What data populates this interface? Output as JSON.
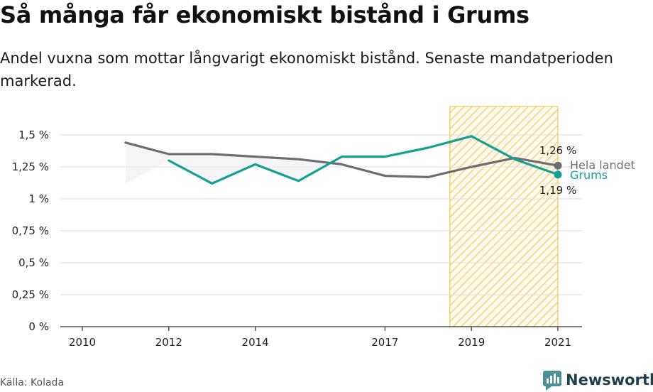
{
  "title": "Så många får ekonomiskt bistånd i Grums",
  "subtitle": "Andel vuxna som mottar långvarigt ekonomiskt bistånd. Senaste mandatperioden markerad.",
  "source": "Källa: Kolada",
  "brand": "Newsworthy",
  "colors": {
    "grums": "#15a093",
    "hela_landet": "#6e6d72",
    "highlight": "#f3c950",
    "grid": "#dddddd",
    "brand": "#1f3f4c"
  },
  "chart_data": {
    "type": "line",
    "title": "Så många får ekonomiskt bistånd i Grums",
    "xlabel": "",
    "ylabel": "",
    "ylim": [
      0,
      1.5
    ],
    "xlim": [
      2010,
      2021
    ],
    "x_ticks": [
      "2010",
      "2012",
      "2014",
      "2017",
      "2019",
      "2021"
    ],
    "y_ticks": [
      {
        "value": 0,
        "label": "0 %"
      },
      {
        "value": 0.25,
        "label": "0,25 %"
      },
      {
        "value": 0.5,
        "label": "0,5 %"
      },
      {
        "value": 0.75,
        "label": "0,75 %"
      },
      {
        "value": 1,
        "label": "1 %"
      },
      {
        "value": 1.25,
        "label": "1,25 %"
      },
      {
        "value": 1.5,
        "label": "1,5 %"
      }
    ],
    "highlight_period": {
      "from": 2018.5,
      "to": 2021
    },
    "series": [
      {
        "name": "Hela landet",
        "color": "#6e6d72",
        "x": [
          2011,
          2012,
          2013,
          2014,
          2015,
          2016,
          2017,
          2018,
          2019,
          2020,
          2021
        ],
        "values": [
          1.44,
          1.35,
          1.35,
          1.33,
          1.31,
          1.27,
          1.18,
          1.17,
          1.25,
          1.32,
          1.26
        ],
        "end_label": "1,26 %"
      },
      {
        "name": "Grums",
        "color": "#15a093",
        "x": [
          2012,
          2013,
          2014,
          2015,
          2016,
          2017,
          2018,
          2019,
          2020,
          2021
        ],
        "values": [
          1.3,
          1.12,
          1.27,
          1.14,
          1.33,
          1.33,
          1.4,
          1.49,
          1.31,
          1.19
        ],
        "end_label": "1,19 %"
      }
    ],
    "grid": true,
    "legend": "end-of-line labels"
  }
}
